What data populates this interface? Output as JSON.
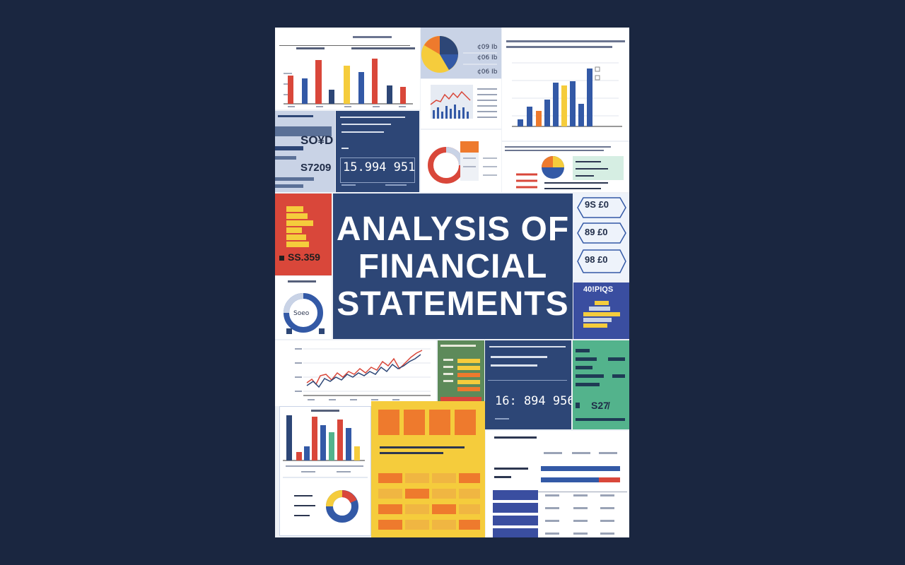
{
  "title": {
    "line1": "ANALYSIS OF",
    "line2": "FINANCIAL",
    "line3": "STATEMENTS"
  },
  "figures": {
    "big_number_top": "15.994 951",
    "big_number_mid": "16: 894 956",
    "dark_left_1": "SO¥D",
    "dark_left_2": "S7209",
    "red_panel": "SS.359",
    "green_panel": "S27̸",
    "hex_1": "9S £0",
    "hex_2": "89 £0",
    "hex_3": "98 £0",
    "indigo_panel": "40!PIQS"
  },
  "colors": {
    "navy": "#2d4676",
    "red": "#d9473a",
    "yellow": "#f5cc3c",
    "blue": "#3359a6",
    "green": "#53b38c",
    "orange": "#ee7a2d",
    "background": "#1a2640"
  }
}
